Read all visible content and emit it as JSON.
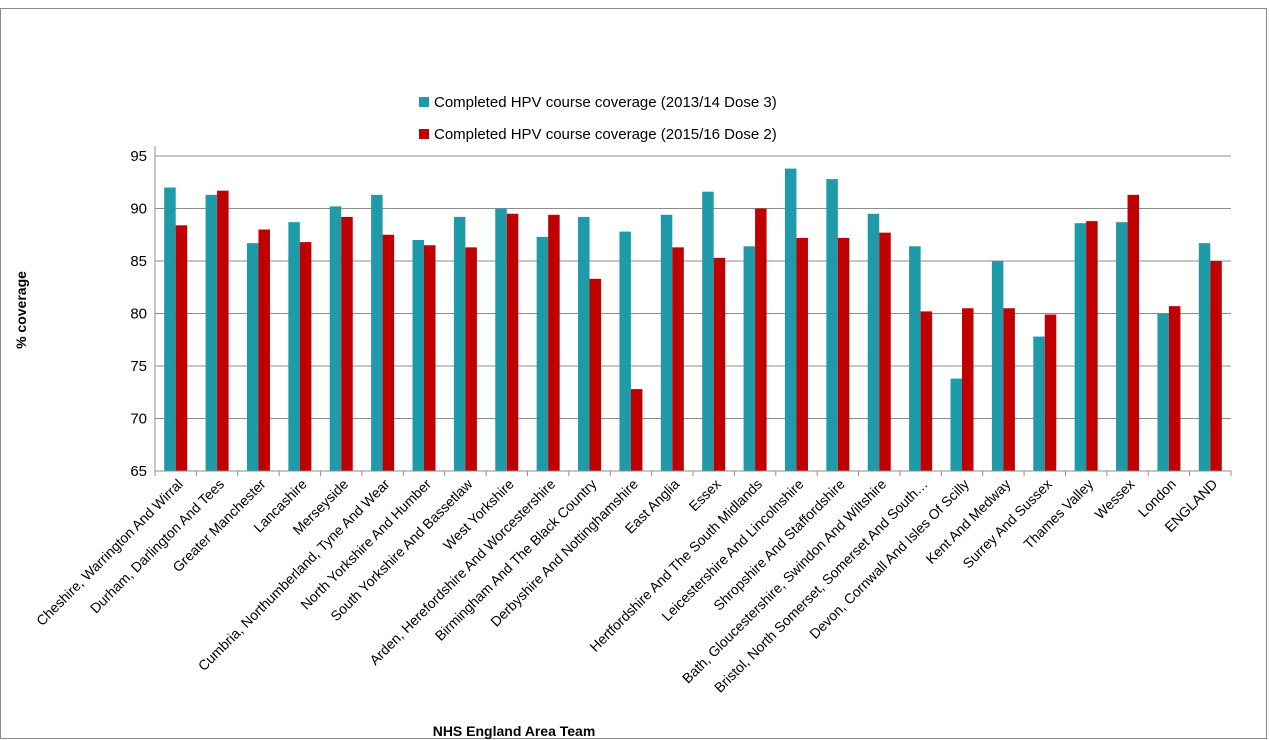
{
  "chart_data": {
    "type": "bar",
    "title": "",
    "xlabel": "NHS England Area Team",
    "ylabel": "% coverage",
    "ylim": [
      65,
      95
    ],
    "yticks": [
      65,
      70,
      75,
      80,
      85,
      90,
      95
    ],
    "grid": true,
    "legend_position": "top",
    "categories": [
      "Cheshire, Warrington And Wirral",
      "Durham, Darlington And Tees",
      "Greater Manchester",
      "Lancashire",
      "Merseyside",
      "Cumbria, Northumberland, Tyne And Wear",
      "North Yorkshire And Humber",
      "South Yorkshire And Bassetlaw",
      "West Yorkshire",
      "Arden, Herefordshire And Worcestershire",
      "Birmingham And The Black Country",
      "Derbyshire And Nottinghamshire",
      "East Anglia",
      "Essex",
      "Hertfordshire And The South Midlands",
      "Leicestershire And Lincolnshire",
      "Shropshire And Staffordshire",
      "Bath, Gloucestershire, Swindon And Wiltshire",
      "Bristol, North Somerset, Somerset And South…",
      "Devon, Cornwall And Isles Of Scilly",
      "Kent And Medway",
      "Surrey And Sussex",
      "Thames Valley",
      "Wessex",
      "London",
      "ENGLAND"
    ],
    "series": [
      {
        "name": "Completed HPV course coverage (2013/14 Dose 3)",
        "color": "#1f9aa8",
        "values": [
          92.0,
          91.3,
          86.7,
          88.7,
          90.2,
          91.3,
          87.0,
          89.2,
          90.0,
          87.3,
          89.2,
          87.8,
          89.4,
          91.6,
          86.4,
          93.8,
          92.8,
          89.5,
          86.4,
          73.8,
          85.0,
          77.8,
          88.6,
          88.7,
          80.0,
          86.7
        ]
      },
      {
        "name": "Completed HPV course coverage (2015/16 Dose 2)",
        "color": "#c00000",
        "values": [
          88.4,
          91.7,
          88.0,
          86.8,
          89.2,
          87.5,
          86.5,
          86.3,
          89.5,
          89.4,
          83.3,
          72.8,
          86.3,
          85.3,
          90.0,
          87.2,
          87.2,
          87.7,
          80.2,
          80.5,
          80.5,
          79.9,
          88.8,
          91.3,
          80.7,
          85.0
        ]
      }
    ]
  }
}
